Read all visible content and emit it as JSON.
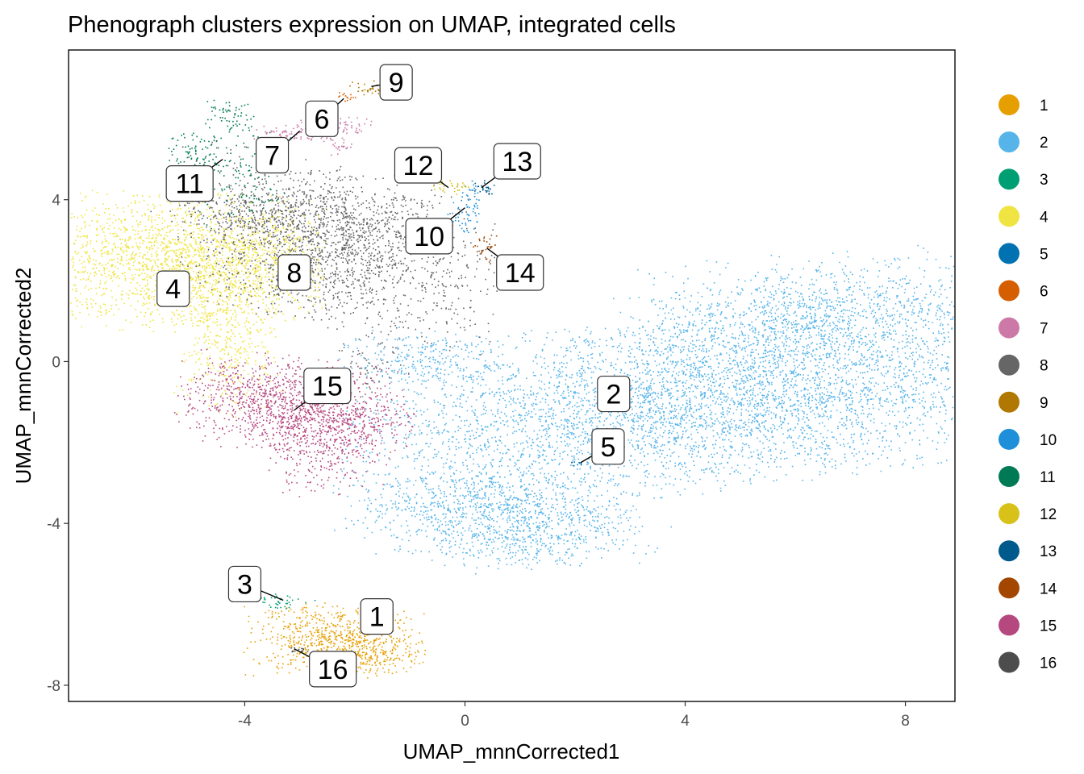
{
  "chart_data": {
    "type": "scatter",
    "title": "Phenograph clusters expression on UMAP, integrated cells",
    "xlabel": "UMAP_mnnCorrected1",
    "ylabel": "UMAP_mnnCorrected2",
    "xlim": [
      -7.2,
      8.9
    ],
    "ylim": [
      -8.4,
      7.7
    ],
    "xticks": [
      "-4",
      "0",
      "4",
      "8"
    ],
    "xtick_values": [
      -4,
      0,
      4,
      8
    ],
    "yticks": [
      "4",
      "0",
      "-4",
      "-8"
    ],
    "ytick_values": [
      4,
      0,
      -4,
      -8
    ],
    "grid": false,
    "legend_position": "right",
    "clusters": [
      {
        "id": "1",
        "color": "#E69F00",
        "label_at": [
          -1.6,
          -6.3
        ],
        "anchor": [
          -1.8,
          -6.3
        ],
        "regions": [
          [
            -2.4,
            -6.85,
            0.75,
            0.42,
            700,
            0
          ],
          [
            -1.7,
            -7.3,
            0.45,
            0.25,
            150,
            0
          ]
        ]
      },
      {
        "id": "2",
        "color": "#56B4E9",
        "label_at": [
          2.7,
          -0.8
        ],
        "anchor": [
          2.7,
          -0.8
        ],
        "regions": [
          [
            4.6,
            -0.9,
            3.2,
            1.05,
            5200,
            0.34
          ],
          [
            6.3,
            1.3,
            1.7,
            0.65,
            1000,
            0.2
          ],
          [
            0.4,
            -3.6,
            1.2,
            0.5,
            800,
            0.05
          ],
          [
            -0.8,
            0.1,
            0.7,
            0.35,
            250,
            0
          ],
          [
            1.3,
            -4.3,
            1.0,
            0.4,
            450,
            0.2
          ]
        ]
      },
      {
        "id": "3",
        "color": "#009E73",
        "label_at": [
          -4.0,
          -5.5
        ],
        "anchor": [
          -3.3,
          -5.9
        ],
        "regions": [
          [
            -3.35,
            -5.92,
            0.3,
            0.1,
            40,
            -0.2
          ]
        ]
      },
      {
        "id": "4",
        "color": "#F0E442",
        "label_at": [
          -5.3,
          1.8
        ],
        "anchor": [
          -5.3,
          1.8
        ],
        "regions": [
          [
            -5.2,
            2.5,
            1.25,
            0.8,
            2000,
            0
          ],
          [
            -4.3,
            0.6,
            0.45,
            0.9,
            400,
            0
          ],
          [
            -3.6,
            2.6,
            0.45,
            0.45,
            250,
            0
          ]
        ]
      },
      {
        "id": "5",
        "color": "#0072B2",
        "label_at": [
          2.6,
          -2.1
        ],
        "anchor": [
          2.1,
          -2.5
        ],
        "regions": [
          [
            2.05,
            -2.52,
            0.06,
            0.04,
            8,
            0
          ]
        ]
      },
      {
        "id": "6",
        "color": "#D55E00",
        "label_at": [
          -2.6,
          6.0
        ],
        "anchor": [
          -2.2,
          6.5
        ],
        "regions": [
          [
            -2.15,
            6.55,
            0.1,
            0.06,
            15,
            0
          ]
        ]
      },
      {
        "id": "7",
        "color": "#CC79A7",
        "label_at": [
          -3.5,
          5.1
        ],
        "anchor": [
          -3.0,
          5.7
        ],
        "regions": [
          [
            -2.8,
            5.75,
            0.5,
            0.14,
            150,
            0.25
          ],
          [
            -2.3,
            5.4,
            0.15,
            0.15,
            30,
            0
          ]
        ]
      },
      {
        "id": "8",
        "color": "#666666",
        "label_at": [
          -3.1,
          2.2
        ],
        "anchor": [
          -3.1,
          2.2
        ],
        "regions": [
          [
            -2.4,
            2.9,
            1.35,
            0.95,
            1900,
            -0.5
          ],
          [
            -3.0,
            3.65,
            1.1,
            0.3,
            350,
            0
          ],
          [
            -1.8,
            0.1,
            0.3,
            0.4,
            60,
            0
          ]
        ]
      },
      {
        "id": "9",
        "color": "#B07800",
        "label_at": [
          -1.25,
          6.9
        ],
        "anchor": [
          -1.7,
          6.8
        ],
        "regions": [
          [
            -1.75,
            6.78,
            0.2,
            0.08,
            30,
            0
          ]
        ]
      },
      {
        "id": "10",
        "color": "#1E8FD8",
        "label_at": [
          -0.65,
          3.1
        ],
        "anchor": [
          0.0,
          3.8
        ],
        "regions": [
          [
            0.05,
            3.85,
            0.15,
            0.3,
            60,
            0
          ],
          [
            -0.1,
            3.55,
            0.15,
            0.1,
            15,
            0
          ]
        ]
      },
      {
        "id": "11",
        "color": "#007A55",
        "label_at": [
          -5.0,
          4.4
        ],
        "anchor": [
          -4.4,
          5.0
        ],
        "regions": [
          [
            -4.9,
            5.2,
            0.3,
            0.25,
            80,
            0
          ],
          [
            -4.0,
            4.6,
            0.4,
            0.6,
            120,
            0
          ],
          [
            -4.3,
            6.1,
            0.25,
            0.22,
            60,
            0
          ]
        ]
      },
      {
        "id": "12",
        "color": "#D8C21A",
        "label_at": [
          -0.85,
          4.85
        ],
        "anchor": [
          -0.3,
          4.3
        ],
        "regions": [
          [
            -0.2,
            4.32,
            0.2,
            0.08,
            30,
            0
          ]
        ]
      },
      {
        "id": "13",
        "color": "#005A8C",
        "label_at": [
          0.95,
          4.95
        ],
        "anchor": [
          0.3,
          4.3
        ],
        "regions": [
          [
            0.35,
            4.3,
            0.1,
            0.08,
            25,
            0
          ]
        ]
      },
      {
        "id": "14",
        "color": "#A34700",
        "label_at": [
          1.0,
          2.2
        ],
        "anchor": [
          0.4,
          2.8
        ],
        "regions": [
          [
            0.4,
            2.8,
            0.12,
            0.18,
            30,
            0
          ]
        ]
      },
      {
        "id": "15",
        "color": "#B5487F",
        "label_at": [
          -2.5,
          -0.6
        ],
        "anchor": [
          -3.1,
          -1.2
        ],
        "regions": [
          [
            -3.1,
            -1.05,
            1.0,
            0.55,
            1300,
            -0.25
          ],
          [
            -2.5,
            -2.15,
            0.5,
            0.55,
            300,
            0
          ]
        ]
      },
      {
        "id": "16",
        "color": "#4D4D4D",
        "label_at": [
          -2.4,
          -7.6
        ],
        "anchor": [
          -3.1,
          -7.1
        ],
        "regions": [
          [
            -3.05,
            -7.12,
            0.12,
            0.04,
            15,
            0
          ]
        ]
      }
    ]
  }
}
